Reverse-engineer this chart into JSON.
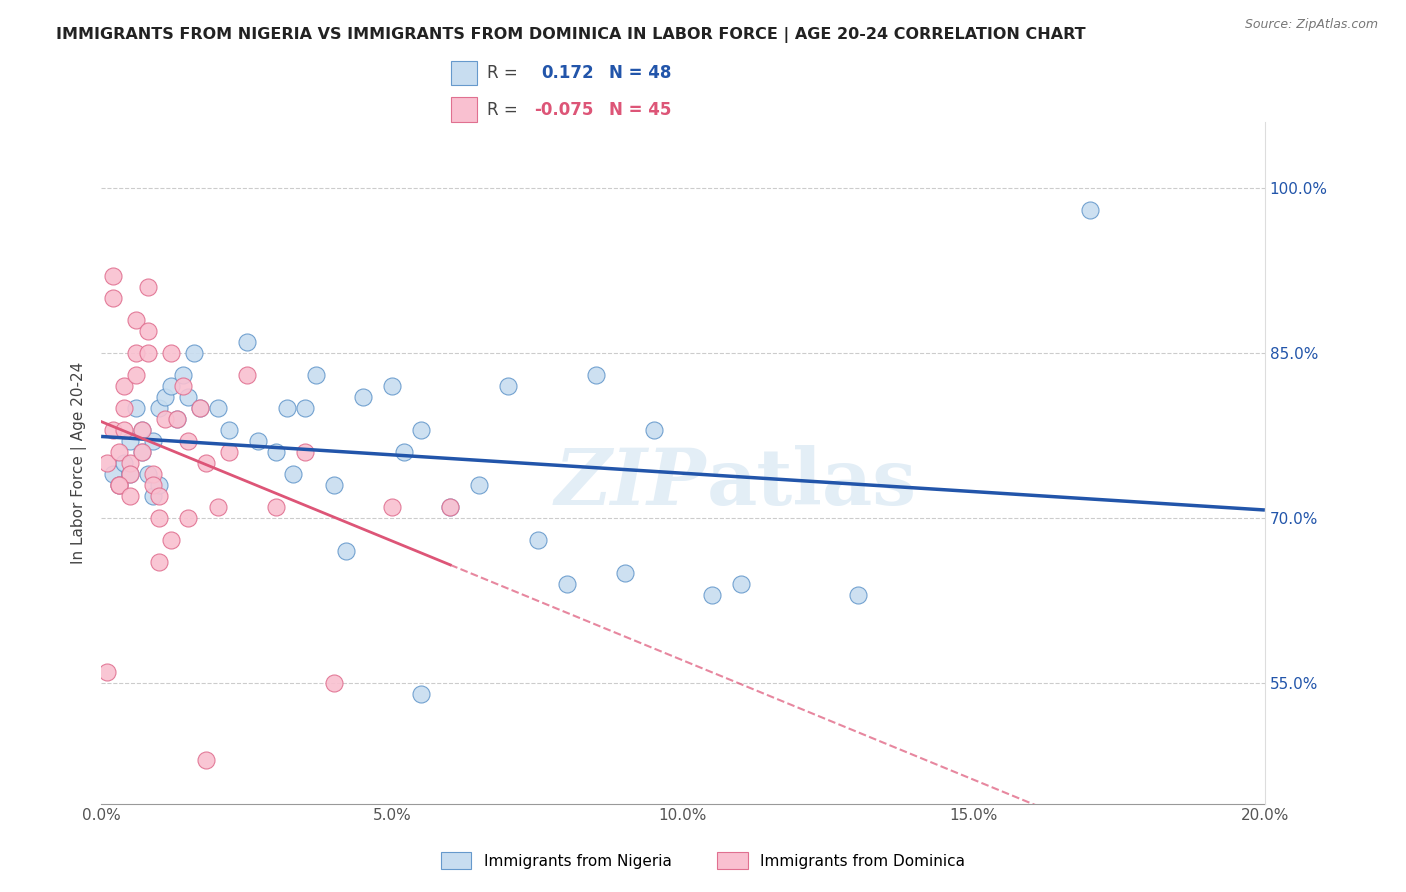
{
  "title": "IMMIGRANTS FROM NIGERIA VS IMMIGRANTS FROM DOMINICA IN LABOR FORCE | AGE 20-24 CORRELATION CHART",
  "source": "Source: ZipAtlas.com",
  "ylabel": "In Labor Force | Age 20-24",
  "legend_labels": [
    "Immigrants from Nigeria",
    "Immigrants from Dominica"
  ],
  "r_nigeria": 0.172,
  "n_nigeria": 48,
  "r_dominica": -0.075,
  "n_dominica": 45,
  "xlim": [
    0.0,
    20.0
  ],
  "ylim": [
    44.0,
    106.0
  ],
  "yticks": [
    55.0,
    70.0,
    85.0,
    100.0
  ],
  "xticks": [
    0.0,
    5.0,
    10.0,
    15.0,
    20.0
  ],
  "color_nigeria": "#c8ddf0",
  "color_dominica": "#f9c0d0",
  "edge_color_nigeria": "#6699cc",
  "edge_color_dominica": "#e07090",
  "line_color_nigeria": "#2255aa",
  "line_color_dominica": "#dd5577",
  "nigeria_x": [
    0.2,
    0.3,
    0.4,
    0.5,
    0.5,
    0.6,
    0.7,
    0.7,
    0.8,
    0.9,
    0.9,
    1.0,
    1.0,
    1.1,
    1.2,
    1.3,
    1.4,
    1.5,
    1.6,
    1.7,
    2.0,
    2.2,
    2.5,
    2.7,
    3.0,
    3.2,
    3.3,
    3.5,
    3.7,
    4.0,
    4.2,
    4.5,
    5.0,
    5.2,
    5.5,
    6.0,
    6.5,
    7.0,
    7.5,
    8.0,
    8.5,
    9.0,
    9.5,
    10.5,
    11.0,
    5.5,
    13.0,
    17.0
  ],
  "nigeria_y": [
    74,
    73,
    75,
    74,
    77,
    80,
    78,
    76,
    74,
    77,
    72,
    73,
    80,
    81,
    82,
    79,
    83,
    81,
    85,
    80,
    80,
    78,
    86,
    77,
    76,
    80,
    74,
    80,
    83,
    73,
    67,
    81,
    82,
    76,
    78,
    71,
    73,
    82,
    68,
    64,
    83,
    65,
    78,
    63,
    64,
    54,
    63,
    98
  ],
  "dominica_x": [
    0.1,
    0.2,
    0.2,
    0.3,
    0.3,
    0.4,
    0.4,
    0.5,
    0.5,
    0.6,
    0.6,
    0.7,
    0.7,
    0.8,
    0.8,
    0.9,
    0.9,
    1.0,
    1.0,
    1.1,
    1.2,
    1.3,
    1.4,
    1.5,
    1.7,
    1.8,
    2.0,
    2.2,
    2.5,
    3.0,
    3.5,
    4.0,
    5.0,
    6.0,
    0.1,
    0.2,
    0.3,
    0.4,
    0.5,
    0.6,
    0.8,
    1.0,
    1.2,
    1.5,
    1.8
  ],
  "dominica_y": [
    75,
    78,
    90,
    73,
    76,
    80,
    82,
    75,
    74,
    85,
    88,
    76,
    78,
    91,
    87,
    74,
    73,
    72,
    70,
    79,
    85,
    79,
    82,
    77,
    80,
    75,
    71,
    76,
    83,
    71,
    76,
    55,
    71,
    71,
    56,
    92,
    73,
    78,
    72,
    83,
    85,
    66,
    68,
    70,
    48
  ],
  "background_color": "#ffffff",
  "grid_color": "#cccccc"
}
